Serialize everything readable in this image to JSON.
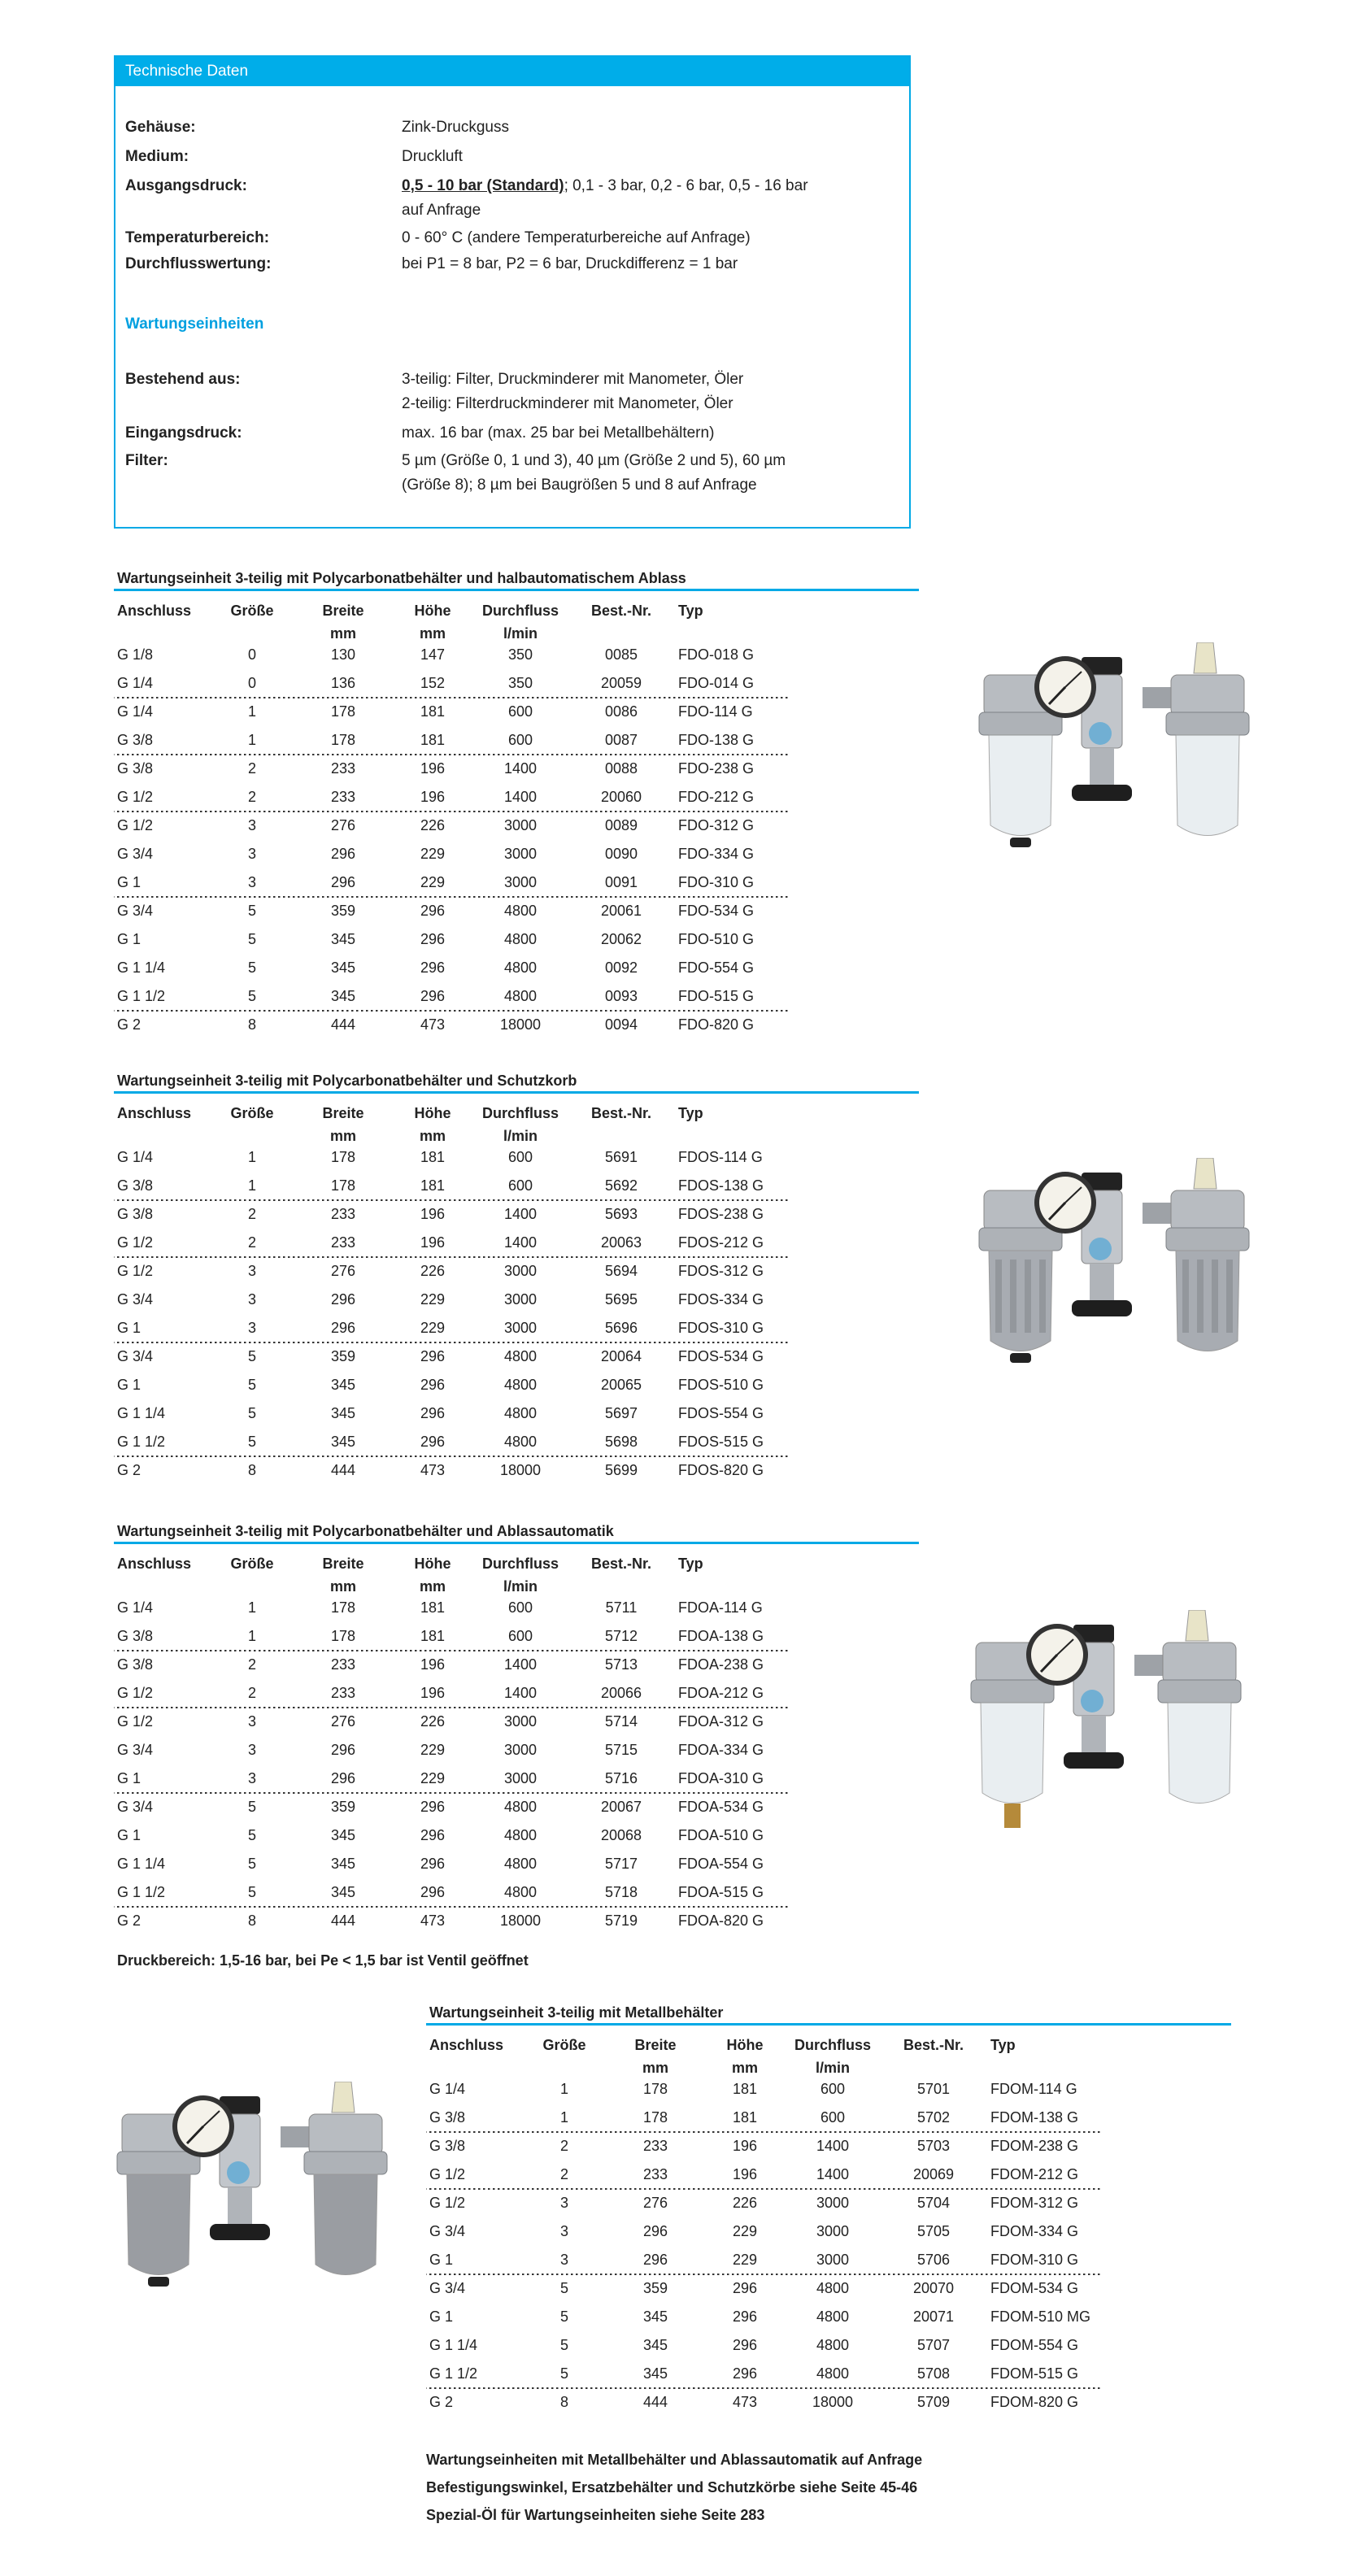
{
  "colors": {
    "accent": "#00ade9",
    "text": "#222222"
  },
  "tech": {
    "title": "Technische Daten",
    "specs": [
      {
        "label": "Gehäuse:",
        "value": "Zink-Druckguss"
      },
      {
        "label": "Medium:",
        "value": "Druckluft"
      },
      {
        "label": "Ausgangsdruck:",
        "value_bold": "0,5 - 10 bar (Standard)",
        "value": "; 0,1 - 3 bar, 0,2 - 6 bar, 0,5 - 16 bar",
        "value2": "auf Anfrage"
      },
      {
        "label": "Temperaturbereich:",
        "value": "0 - 60° C (andere Temperaturbereiche auf Anfrage)"
      },
      {
        "label": "Durchflusswertung:",
        "value": "bei P1 = 8 bar, P2 = 6 bar, Druckdifferenz = 1 bar"
      }
    ],
    "subheading": "Wartungseinheiten",
    "specs2": [
      {
        "label": "Bestehend aus:",
        "value": "3-teilig: Filter, Druckminderer mit Manometer, Öler",
        "value2": "2-teilig: Filterdruckminderer mit Manometer, Öler"
      },
      {
        "label": "Eingangsdruck:",
        "value": "max. 16 bar (max. 25 bar bei Metallbehältern)"
      },
      {
        "label": "Filter:",
        "value": "5 µm (Größe 0, 1 und 3), 40 µm (Größe 2 und 5), 60 µm",
        "value2": "(Größe 8); 8 µm bei Baugrößen 5 und 8 auf Anfrage"
      }
    ]
  },
  "columns": [
    {
      "top": "Anschluss",
      "unit": ""
    },
    {
      "top": "Größe",
      "unit": ""
    },
    {
      "top": "Breite",
      "unit": "mm"
    },
    {
      "top": "Höhe",
      "unit": "mm"
    },
    {
      "top": "Durchfluss",
      "unit": "l/min"
    },
    {
      "top": "Best.-Nr.",
      "unit": ""
    },
    {
      "top": "Typ",
      "unit": ""
    }
  ],
  "tables": [
    {
      "title": "Wartungseinheit 3-teilig mit Polycarbonatbehälter und halbautomatischem Ablass",
      "image": "clear",
      "rows": [
        [
          "G 1/8",
          "0",
          "130",
          "147",
          "350",
          "0085",
          "FDO-018 G"
        ],
        [
          "G 1/4",
          "0",
          "136",
          "152",
          "350",
          "20059",
          "FDO-014 G"
        ],
        [
          "G 1/4",
          "1",
          "178",
          "181",
          "600",
          "0086",
          "FDO-114 G"
        ],
        [
          "G 3/8",
          "1",
          "178",
          "181",
          "600",
          "0087",
          "FDO-138 G"
        ],
        [
          "G 3/8",
          "2",
          "233",
          "196",
          "1400",
          "0088",
          "FDO-238 G"
        ],
        [
          "G 1/2",
          "2",
          "233",
          "196",
          "1400",
          "20060",
          "FDO-212 G"
        ],
        [
          "G 1/2",
          "3",
          "276",
          "226",
          "3000",
          "0089",
          "FDO-312 G"
        ],
        [
          "G 3/4",
          "3",
          "296",
          "229",
          "3000",
          "0090",
          "FDO-334 G"
        ],
        [
          "G 1",
          "3",
          "296",
          "229",
          "3000",
          "0091",
          "FDO-310 G"
        ],
        [
          "G 3/4",
          "5",
          "359",
          "296",
          "4800",
          "20061",
          "FDO-534 G"
        ],
        [
          "G 1",
          "5",
          "345",
          "296",
          "4800",
          "20062",
          "FDO-510 G"
        ],
        [
          "G 1 1/4",
          "5",
          "345",
          "296",
          "4800",
          "0092",
          "FDO-554 G"
        ],
        [
          "G 1 1/2",
          "5",
          "345",
          "296",
          "4800",
          "0093",
          "FDO-515 G"
        ],
        [
          "G 2",
          "8",
          "444",
          "473",
          "18000",
          "0094",
          "FDO-820 G"
        ]
      ]
    },
    {
      "title": "Wartungseinheit 3-teilig mit Polycarbonatbehälter und Schutzkorb",
      "image": "guard",
      "rows": [
        [
          "G 1/4",
          "1",
          "178",
          "181",
          "600",
          "5691",
          "FDOS-114 G"
        ],
        [
          "G 3/8",
          "1",
          "178",
          "181",
          "600",
          "5692",
          "FDOS-138 G"
        ],
        [
          "G 3/8",
          "2",
          "233",
          "196",
          "1400",
          "5693",
          "FDOS-238 G"
        ],
        [
          "G 1/2",
          "2",
          "233",
          "196",
          "1400",
          "20063",
          "FDOS-212 G"
        ],
        [
          "G 1/2",
          "3",
          "276",
          "226",
          "3000",
          "5694",
          "FDOS-312 G"
        ],
        [
          "G 3/4",
          "3",
          "296",
          "229",
          "3000",
          "5695",
          "FDOS-334 G"
        ],
        [
          "G 1",
          "3",
          "296",
          "229",
          "3000",
          "5696",
          "FDOS-310 G"
        ],
        [
          "G 3/4",
          "5",
          "359",
          "296",
          "4800",
          "20064",
          "FDOS-534 G"
        ],
        [
          "G 1",
          "5",
          "345",
          "296",
          "4800",
          "20065",
          "FDOS-510 G"
        ],
        [
          "G 1 1/4",
          "5",
          "345",
          "296",
          "4800",
          "5697",
          "FDOS-554 G"
        ],
        [
          "G 1 1/2",
          "5",
          "345",
          "296",
          "4800",
          "5698",
          "FDOS-515 G"
        ],
        [
          "G 2",
          "8",
          "444",
          "473",
          "18000",
          "5699",
          "FDOS-820 G"
        ]
      ]
    },
    {
      "title": "Wartungseinheit 3-teilig mit Polycarbonatbehälter und Ablassautomatik",
      "image": "auto",
      "rows": [
        [
          "G 1/4",
          "1",
          "178",
          "181",
          "600",
          "5711",
          "FDOA-114 G"
        ],
        [
          "G 3/8",
          "1",
          "178",
          "181",
          "600",
          "5712",
          "FDOA-138 G"
        ],
        [
          "G 3/8",
          "2",
          "233",
          "196",
          "1400",
          "5713",
          "FDOA-238 G"
        ],
        [
          "G 1/2",
          "2",
          "233",
          "196",
          "1400",
          "20066",
          "FDOA-212 G"
        ],
        [
          "G 1/2",
          "3",
          "276",
          "226",
          "3000",
          "5714",
          "FDOA-312 G"
        ],
        [
          "G 3/4",
          "3",
          "296",
          "229",
          "3000",
          "5715",
          "FDOA-334 G"
        ],
        [
          "G 1",
          "3",
          "296",
          "229",
          "3000",
          "5716",
          "FDOA-310 G"
        ],
        [
          "G 3/4",
          "5",
          "359",
          "296",
          "4800",
          "20067",
          "FDOA-534 G"
        ],
        [
          "G 1",
          "5",
          "345",
          "296",
          "4800",
          "20068",
          "FDOA-510 G"
        ],
        [
          "G 1 1/4",
          "5",
          "345",
          "296",
          "4800",
          "5717",
          "FDOA-554 G"
        ],
        [
          "G 1 1/2",
          "5",
          "345",
          "296",
          "4800",
          "5718",
          "FDOA-515 G"
        ],
        [
          "G 2",
          "8",
          "444",
          "473",
          "18000",
          "5719",
          "FDOA-820 G"
        ]
      ],
      "note": "Druckbereich: 1,5-16 bar, bei Pe < 1,5 bar ist Ventil geöffnet"
    },
    {
      "title": "Wartungseinheit 3-teilig mit Metallbehälter",
      "image": "metal",
      "rows": [
        [
          "G 1/4",
          "1",
          "178",
          "181",
          "600",
          "5701",
          "FDOM-114 G"
        ],
        [
          "G 3/8",
          "1",
          "178",
          "181",
          "600",
          "5702",
          "FDOM-138 G"
        ],
        [
          "G 3/8",
          "2",
          "233",
          "196",
          "1400",
          "5703",
          "FDOM-238 G"
        ],
        [
          "G 1/2",
          "2",
          "233",
          "196",
          "1400",
          "20069",
          "FDOM-212 G"
        ],
        [
          "G 1/2",
          "3",
          "276",
          "226",
          "3000",
          "5704",
          "FDOM-312 G"
        ],
        [
          "G 3/4",
          "3",
          "296",
          "229",
          "3000",
          "5705",
          "FDOM-334 G"
        ],
        [
          "G 1",
          "3",
          "296",
          "229",
          "3000",
          "5706",
          "FDOM-310 G"
        ],
        [
          "G 3/4",
          "5",
          "359",
          "296",
          "4800",
          "20070",
          "FDOM-534 G"
        ],
        [
          "G 1",
          "5",
          "345",
          "296",
          "4800",
          "20071",
          "FDOM-510 MG"
        ],
        [
          "G 1 1/4",
          "5",
          "345",
          "296",
          "4800",
          "5707",
          "FDOM-554 G"
        ],
        [
          "G 1 1/2",
          "5",
          "345",
          "296",
          "4800",
          "5708",
          "FDOM-515 G"
        ],
        [
          "G 2",
          "8",
          "444",
          "473",
          "18000",
          "5709",
          "FDOM-820 G"
        ]
      ]
    }
  ],
  "footer_notes": [
    "Wartungseinheiten mit Metallbehälter und Ablassautomatik auf Anfrage",
    "Befestigungswinkel, Ersatzbehälter und Schutzkörbe siehe Seite 45-46",
    "Spezial-Öl für Wartungseinheiten siehe Seite 283"
  ]
}
